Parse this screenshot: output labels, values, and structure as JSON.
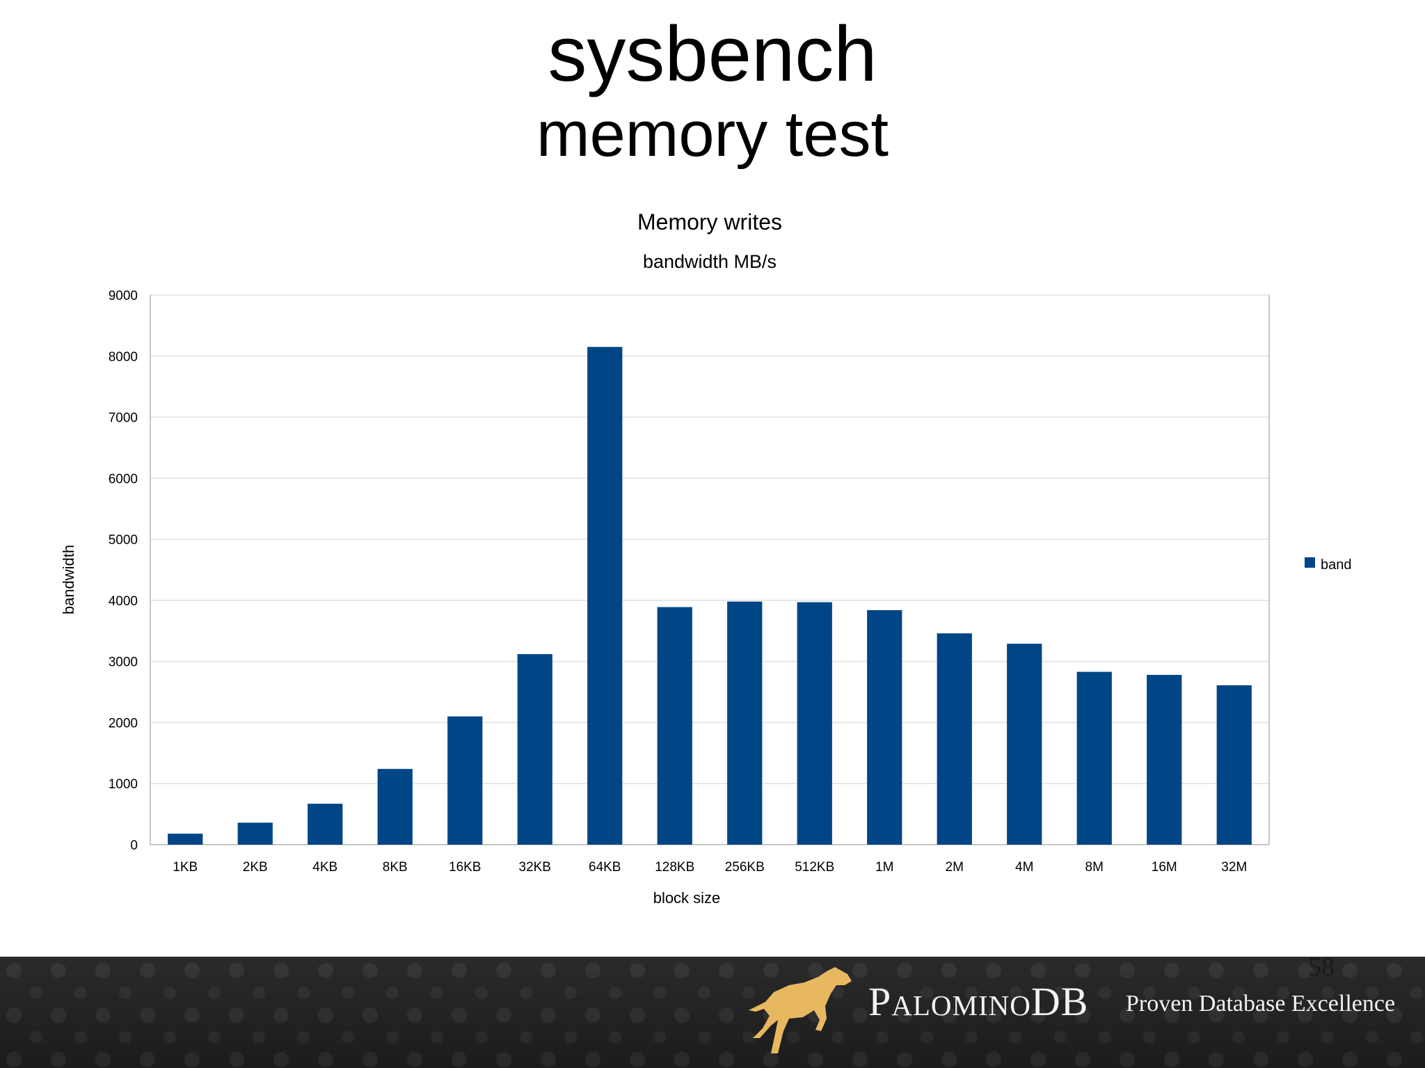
{
  "slide": {
    "title": "sysbench",
    "subtitle": "memory test",
    "page_number": "58"
  },
  "footer": {
    "brand_name": "PalominoDB",
    "tagline": "Proven Database Excellence",
    "logo_icon": "horse-logo-icon"
  },
  "colors": {
    "bar": "#004586",
    "grid": "#e0e0e0",
    "axis": "#b3b3b3",
    "footer_bg": "#222222",
    "logo": "#e8b860"
  },
  "chart_data": {
    "type": "bar",
    "title": "Memory writes",
    "subtitle": "bandwidth MB/s",
    "xlabel": "block size",
    "ylabel": "bandwidth",
    "categories": [
      "1KB",
      "2KB",
      "4KB",
      "8KB",
      "16KB",
      "32KB",
      "64KB",
      "128KB",
      "256KB",
      "512KB",
      "1M",
      "2M",
      "4M",
      "8M",
      "16M",
      "32M"
    ],
    "series": [
      {
        "name": "band",
        "values": [
          180,
          360,
          670,
          1240,
          2100,
          3120,
          8150,
          3890,
          3980,
          3970,
          3840,
          3460,
          3290,
          2830,
          2780,
          2610
        ]
      }
    ],
    "ylim": [
      0,
      9000
    ],
    "yticks": [
      0,
      1000,
      2000,
      3000,
      4000,
      5000,
      6000,
      7000,
      8000,
      9000
    ],
    "grid": true,
    "legend_position": "right"
  }
}
